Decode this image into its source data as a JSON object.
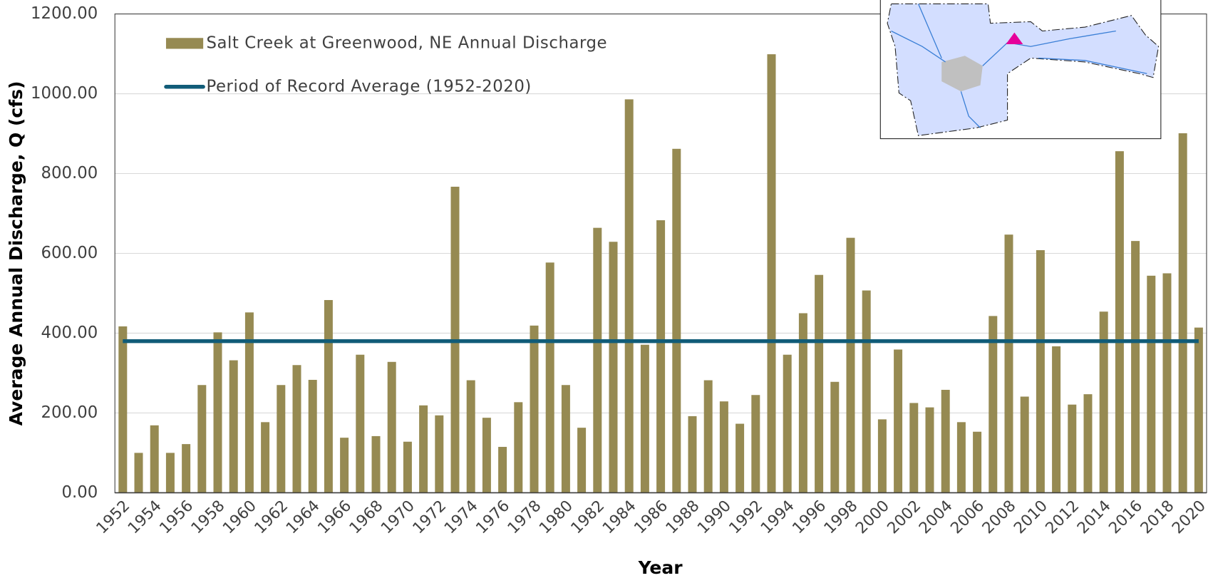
{
  "chart_data": {
    "type": "bar",
    "xlabel": "Year",
    "ylabel": "Average Annual Discharge, Q (cfs)",
    "categories": [
      "1952",
      null,
      "1954",
      null,
      "1956",
      null,
      "1958",
      null,
      "1960",
      null,
      "1962",
      null,
      "1964",
      null,
      "1966",
      null,
      "1968",
      null,
      "1970",
      null,
      "1972",
      null,
      "1974",
      null,
      "1976",
      null,
      "1978",
      null,
      "1980",
      null,
      "1982",
      null,
      "1984",
      null,
      "1986",
      null,
      "1988",
      null,
      "1990",
      null,
      "1992",
      null,
      "1994",
      null,
      "1996",
      null,
      "1998",
      null,
      "2000",
      null,
      "2002",
      null,
      "2004",
      null,
      "2006",
      null,
      "2008",
      null,
      "2010",
      null,
      "2012",
      null,
      "2014",
      null,
      "2016",
      null,
      "2018",
      null,
      "2020"
    ],
    "series": [
      {
        "name": "Salt Creek at Greenwood, NE Annual Discharge",
        "type": "bar",
        "color": "#968a52",
        "values": [
          417,
          100,
          169,
          100,
          122,
          270,
          402,
          332,
          452,
          177,
          270,
          320,
          283,
          483,
          138,
          346,
          142,
          328,
          128,
          219,
          194,
          767,
          282,
          188,
          115,
          227,
          419,
          577,
          270,
          163,
          664,
          629,
          986,
          371,
          683,
          862,
          192,
          282,
          229,
          173,
          245,
          1099,
          346,
          450,
          546,
          278,
          639,
          507,
          184,
          359,
          225,
          214,
          258,
          177,
          153,
          443,
          647,
          241,
          608,
          367,
          221,
          247,
          454,
          856,
          631,
          544,
          550,
          901,
          414
        ]
      },
      {
        "name": "Period of Record Average (1952-2020)",
        "type": "line",
        "color": "#115c78",
        "values": [
          380,
          380,
          380,
          380,
          380,
          380,
          380,
          380,
          380,
          380,
          380,
          380,
          380,
          380,
          380,
          380,
          380,
          380,
          380,
          380,
          380,
          380,
          380,
          380,
          380,
          380,
          380,
          380,
          380,
          380,
          380,
          380,
          380,
          380,
          380,
          380,
          380,
          380,
          380,
          380,
          380,
          380,
          380,
          380,
          380,
          380,
          380,
          380,
          380,
          380,
          380,
          380,
          380,
          380,
          380,
          380,
          380,
          380,
          380,
          380,
          380,
          380,
          380,
          380,
          380,
          380,
          380,
          380,
          380
        ]
      }
    ],
    "ylim": [
      0,
      1200
    ],
    "yticks": [
      {
        "value": 0,
        "label": "0.00"
      },
      {
        "value": 200,
        "label": "200.00"
      },
      {
        "value": 400,
        "label": "400.00"
      },
      {
        "value": 600,
        "label": "600.00"
      },
      {
        "value": 800,
        "label": "800.00"
      },
      {
        "value": 1000,
        "label": "1000.00"
      },
      {
        "value": 1200,
        "label": "1200.00"
      }
    ],
    "grid": true,
    "legend": "upper left"
  }
}
